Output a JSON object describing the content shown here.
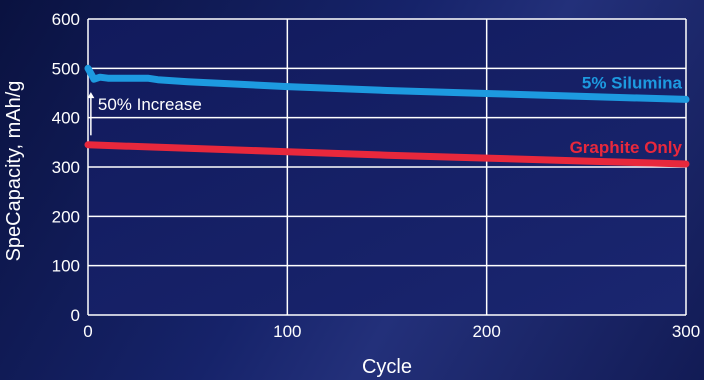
{
  "chart_data": {
    "type": "line",
    "xlabel": "Cycle",
    "ylabel": "SpeCapacity, mAh/g",
    "xlim": [
      0,
      300
    ],
    "ylim": [
      0,
      600
    ],
    "xticks": [
      0,
      100,
      200,
      300
    ],
    "yticks": [
      0,
      100,
      200,
      300,
      400,
      500,
      600
    ],
    "grid": true,
    "series": [
      {
        "name": "5% Silumina",
        "color": "#1d9ae0",
        "x": [
          0,
          3,
          6,
          10,
          20,
          30,
          35,
          50,
          100,
          150,
          200,
          250,
          300
        ],
        "y": [
          500,
          478,
          482,
          480,
          480,
          480,
          477,
          473,
          463,
          455,
          449,
          443,
          437
        ]
      },
      {
        "name": "Graphite Only",
        "color": "#e8283c",
        "x": [
          0,
          50,
          100,
          150,
          200,
          250,
          300
        ],
        "y": [
          345,
          338,
          331,
          324,
          318,
          312,
          306
        ]
      }
    ],
    "annotations": [
      {
        "text": "50% Increase",
        "x": 20,
        "y_from": 348,
        "y_to": 478
      }
    ]
  }
}
